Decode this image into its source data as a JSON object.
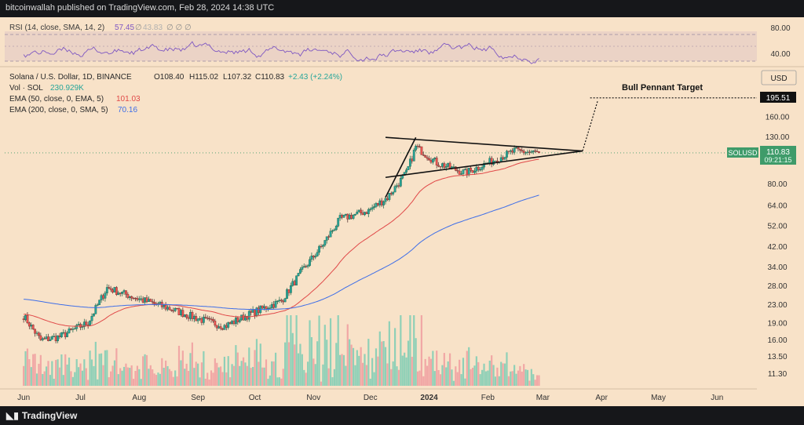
{
  "header": {
    "publisher": "bitcoinwallah published on TradingView.com, Feb 28, 2024 14:38 UTC"
  },
  "footer": {
    "brand": "TradingView"
  },
  "rsi": {
    "label": "RSI (14, close, SMA, 14, 2)",
    "value1": "57.45",
    "sym1": "∅",
    "value2": "43.83",
    "sym_rest": "∅ ∅ ∅",
    "axis": [
      "80.00",
      "40.00"
    ]
  },
  "legend": {
    "symbol": "Solana / U.S. Dollar, 1D, BINANCE",
    "o": "O108.40",
    "h": "H115.02",
    "l": "L107.32",
    "c": "C110.83",
    "chg": "+2.43 (+2.24%)",
    "vol_label": "Vol · SOL",
    "vol_value": "230.929K",
    "ema50_label": "EMA (50, close, 0, EMA, 5)",
    "ema50_value": "101.03",
    "ema200_label": "EMA (200, close, 0, SMA, 5)",
    "ema200_value": "70.16"
  },
  "currency": "USD",
  "annotation": "Bull Pennant Target",
  "price_tags": {
    "target": "195.51",
    "ticker": "SOLUSD",
    "last": "110.83",
    "countdown": "09:21:15"
  },
  "colors": {
    "up": "#26a69a",
    "down": "#ef5350",
    "ema50": "#e04848",
    "ema200": "#3e6ee8",
    "rsi": "#7e57c2",
    "background": "#f8e2c8"
  },
  "chart_data": {
    "type": "candlestick",
    "title": "Solana / U.S. Dollar, 1D, BINANCE",
    "x_axis": {
      "labels": [
        "Jun",
        "Jul",
        "Aug",
        "Sep",
        "Oct",
        "Nov",
        "Dec",
        "2024",
        "Feb",
        "Mar",
        "Apr",
        "May",
        "Jun"
      ]
    },
    "y_axis": {
      "scale": "log",
      "labels": [
        "195.51",
        "160.00",
        "130.00",
        "110.83",
        "80.00",
        "64.00",
        "52.00",
        "42.00",
        "34.00",
        "28.00",
        "23.00",
        "19.00",
        "16.00",
        "13.50",
        "11.30"
      ]
    },
    "close_path": [
      [
        "2023-06-01",
        20.6
      ],
      [
        "2023-06-10",
        16.0
      ],
      [
        "2023-06-20",
        16.6
      ],
      [
        "2023-07-05",
        19.2
      ],
      [
        "2023-07-15",
        27.5
      ],
      [
        "2023-08-01",
        24.5
      ],
      [
        "2023-08-15",
        22.5
      ],
      [
        "2023-09-01",
        20.0
      ],
      [
        "2023-09-15",
        18.5
      ],
      [
        "2023-10-01",
        21.5
      ],
      [
        "2023-10-15",
        24.0
      ],
      [
        "2023-10-25",
        32.0
      ],
      [
        "2023-11-05",
        42.0
      ],
      [
        "2023-11-15",
        56.0
      ],
      [
        "2023-11-30",
        61.0
      ],
      [
        "2023-12-10",
        70.0
      ],
      [
        "2023-12-20",
        90.0
      ],
      [
        "2023-12-25",
        118.0
      ],
      [
        "2024-01-05",
        100.0
      ],
      [
        "2024-01-20",
        90.0
      ],
      [
        "2024-02-01",
        100.0
      ],
      [
        "2024-02-15",
        113.0
      ],
      [
        "2024-02-28",
        110.83
      ]
    ],
    "series": [
      {
        "name": "EMA (50, close, 0, EMA, 5)",
        "last": 101.03
      },
      {
        "name": "EMA (200, close, 0, SMA, 5)",
        "last": 70.16
      }
    ],
    "annotations": [
      "Bull Pennant Target"
    ]
  }
}
